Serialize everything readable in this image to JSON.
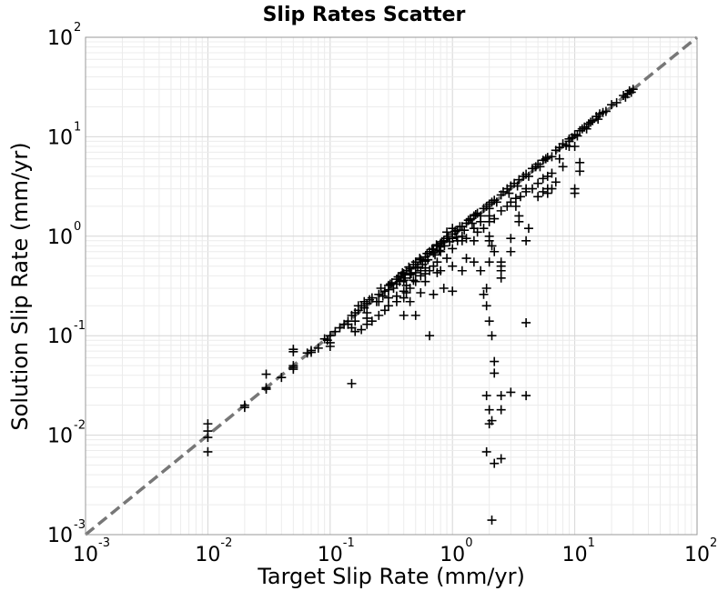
{
  "chart_data": {
    "type": "scatter",
    "title": "Slip Rates Scatter",
    "xlabel": "Target Slip Rate (mm/yr)",
    "ylabel": "Solution Slip Rate (mm/yr)",
    "xscale": "log",
    "yscale": "log",
    "xlim": [
      0.001,
      100
    ],
    "ylim": [
      0.001,
      100
    ],
    "grid": true,
    "marker": "plus",
    "marker_color": "#000000",
    "reference_line": {
      "from": [
        0.001,
        0.001
      ],
      "to": [
        100,
        100
      ],
      "style": "dashed",
      "color": "#777777"
    },
    "x_ticks": [
      {
        "base": "10",
        "exp": "-3"
      },
      {
        "base": "10",
        "exp": "-2"
      },
      {
        "base": "10",
        "exp": "-1"
      },
      {
        "base": "10",
        "exp": "0"
      },
      {
        "base": "10",
        "exp": "1"
      },
      {
        "base": "10",
        "exp": "2"
      }
    ],
    "y_ticks": [
      {
        "base": "10",
        "exp": "-3"
      },
      {
        "base": "10",
        "exp": "-2"
      },
      {
        "base": "10",
        "exp": "-1"
      },
      {
        "base": "10",
        "exp": "0"
      },
      {
        "base": "10",
        "exp": "1"
      },
      {
        "base": "10",
        "exp": "2"
      }
    ],
    "points": [
      [
        0.01,
        0.013
      ],
      [
        0.01,
        0.011
      ],
      [
        0.01,
        0.0095
      ],
      [
        0.01,
        0.0068
      ],
      [
        0.02,
        0.02
      ],
      [
        0.02,
        0.019
      ],
      [
        0.03,
        0.041
      ],
      [
        0.03,
        0.03
      ],
      [
        0.03,
        0.029
      ],
      [
        0.04,
        0.038
      ],
      [
        0.05,
        0.073
      ],
      [
        0.05,
        0.069
      ],
      [
        0.05,
        0.05
      ],
      [
        0.05,
        0.048
      ],
      [
        0.05,
        0.046
      ],
      [
        0.065,
        0.067
      ],
      [
        0.07,
        0.071
      ],
      [
        0.08,
        0.075
      ],
      [
        0.09,
        0.093
      ],
      [
        0.1,
        0.1
      ],
      [
        0.1,
        0.085
      ],
      [
        0.1,
        0.078
      ],
      [
        0.095,
        0.09
      ],
      [
        0.12,
        0.12
      ],
      [
        0.13,
        0.13
      ],
      [
        0.14,
        0.14
      ],
      [
        0.15,
        0.16
      ],
      [
        0.15,
        0.12
      ],
      [
        0.16,
        0.17
      ],
      [
        0.17,
        0.18
      ],
      [
        0.18,
        0.2
      ],
      [
        0.19,
        0.19
      ],
      [
        0.2,
        0.21
      ],
      [
        0.2,
        0.17
      ],
      [
        0.2,
        0.15
      ],
      [
        0.22,
        0.24
      ],
      [
        0.25,
        0.26
      ],
      [
        0.25,
        0.22
      ],
      [
        0.28,
        0.28
      ],
      [
        0.3,
        0.32
      ],
      [
        0.3,
        0.29
      ],
      [
        0.32,
        0.34
      ],
      [
        0.35,
        0.33
      ],
      [
        0.35,
        0.37
      ],
      [
        0.38,
        0.4
      ],
      [
        0.4,
        0.42
      ],
      [
        0.4,
        0.36
      ],
      [
        0.42,
        0.45
      ],
      [
        0.45,
        0.47
      ],
      [
        0.45,
        0.41
      ],
      [
        0.5,
        0.55
      ],
      [
        0.5,
        0.48
      ],
      [
        0.5,
        0.43
      ],
      [
        0.55,
        0.58
      ],
      [
        0.6,
        0.62
      ],
      [
        0.6,
        0.56
      ],
      [
        0.65,
        0.7
      ],
      [
        0.7,
        0.68
      ],
      [
        0.7,
        0.74
      ],
      [
        0.75,
        0.8
      ],
      [
        0.8,
        0.85
      ],
      [
        0.8,
        0.78
      ],
      [
        0.85,
        0.9
      ],
      [
        0.9,
        0.95
      ],
      [
        0.9,
        1.1
      ],
      [
        1.0,
        1.05
      ],
      [
        1.0,
        1.2
      ],
      [
        1.0,
        0.95
      ],
      [
        1.1,
        1.15
      ],
      [
        1.2,
        1.25
      ],
      [
        1.3,
        1.35
      ],
      [
        1.4,
        1.5
      ],
      [
        1.5,
        1.6
      ],
      [
        1.6,
        1.7
      ],
      [
        1.8,
        1.9
      ],
      [
        2.0,
        2.1
      ],
      [
        2.0,
        1.9
      ],
      [
        2.2,
        2.3
      ],
      [
        2.5,
        2.6
      ],
      [
        2.8,
        3.0
      ],
      [
        3.0,
        3.2
      ],
      [
        3.5,
        3.7
      ],
      [
        4.0,
        4.2
      ],
      [
        4.5,
        4.8
      ],
      [
        5.0,
        5.3
      ],
      [
        5.5,
        5.8
      ],
      [
        6.0,
        6.2
      ],
      [
        7.0,
        7.3
      ],
      [
        8.0,
        8.5
      ],
      [
        9.0,
        9.5
      ],
      [
        10.0,
        10.5
      ],
      [
        11.0,
        11.5
      ],
      [
        12.0,
        12.5
      ],
      [
        13.0,
        13.5
      ],
      [
        14.0,
        14.5
      ],
      [
        15.0,
        16.0
      ],
      [
        17.0,
        17.5
      ],
      [
        20.0,
        21.0
      ],
      [
        25.0,
        26.0
      ],
      [
        26.0,
        25.0
      ],
      [
        28.0,
        29.0
      ],
      [
        30.0,
        30.0
      ],
      [
        0.07,
        0.068
      ],
      [
        0.11,
        0.11
      ],
      [
        0.14,
        0.13
      ],
      [
        0.16,
        0.14
      ],
      [
        0.17,
        0.2
      ],
      [
        0.19,
        0.22
      ],
      [
        0.21,
        0.23
      ],
      [
        0.24,
        0.22
      ],
      [
        0.26,
        0.3
      ],
      [
        0.27,
        0.25
      ],
      [
        0.31,
        0.33
      ],
      [
        0.33,
        0.3
      ],
      [
        0.36,
        0.39
      ],
      [
        0.37,
        0.35
      ],
      [
        0.39,
        0.43
      ],
      [
        0.41,
        0.38
      ],
      [
        0.44,
        0.49
      ],
      [
        0.46,
        0.42
      ],
      [
        0.48,
        0.52
      ],
      [
        0.52,
        0.49
      ],
      [
        0.54,
        0.6
      ],
      [
        0.57,
        0.52
      ],
      [
        0.62,
        0.67
      ],
      [
        0.63,
        0.58
      ],
      [
        0.68,
        0.74
      ],
      [
        0.72,
        0.65
      ],
      [
        0.74,
        0.82
      ],
      [
        0.78,
        0.72
      ],
      [
        0.82,
        0.88
      ],
      [
        0.86,
        0.8
      ],
      [
        0.92,
        1.0
      ],
      [
        0.95,
        0.88
      ],
      [
        1.05,
        1.12
      ],
      [
        1.08,
        0.98
      ],
      [
        1.15,
        1.25
      ],
      [
        1.25,
        1.15
      ],
      [
        1.35,
        1.45
      ],
      [
        1.45,
        1.35
      ],
      [
        1.55,
        1.65
      ],
      [
        1.7,
        1.6
      ],
      [
        1.9,
        2.0
      ],
      [
        2.1,
        2.2
      ],
      [
        2.3,
        2.2
      ],
      [
        2.6,
        2.8
      ],
      [
        2.9,
        2.7
      ],
      [
        3.2,
        3.4
      ],
      [
        3.4,
        3.2
      ],
      [
        3.8,
        4.0
      ],
      [
        4.2,
        4.0
      ],
      [
        4.8,
        5.0
      ],
      [
        5.2,
        5.0
      ],
      [
        5.8,
        6.0
      ],
      [
        6.5,
        6.3
      ],
      [
        7.5,
        7.8
      ],
      [
        8.5,
        8.2
      ],
      [
        9.5,
        9.8
      ],
      [
        10.5,
        10.2
      ],
      [
        11.5,
        12.0
      ],
      [
        12.5,
        12.0
      ],
      [
        13.5,
        14.0
      ],
      [
        15.5,
        15.0
      ],
      [
        16.0,
        17.0
      ],
      [
        18.0,
        18.0
      ],
      [
        22.0,
        22.0
      ],
      [
        27.0,
        27.0
      ],
      [
        29.0,
        28.0
      ],
      [
        0.8,
        0.7
      ],
      [
        0.75,
        0.55
      ],
      [
        0.7,
        0.5
      ],
      [
        0.6,
        0.48
      ],
      [
        0.6,
        0.42
      ],
      [
        0.55,
        0.4
      ],
      [
        0.5,
        0.35
      ],
      [
        0.45,
        0.3
      ],
      [
        0.42,
        0.27
      ],
      [
        0.4,
        0.24
      ],
      [
        0.35,
        0.22
      ],
      [
        0.3,
        0.2
      ],
      [
        0.28,
        0.18
      ],
      [
        0.25,
        0.16
      ],
      [
        0.22,
        0.14
      ],
      [
        0.2,
        0.13
      ],
      [
        0.18,
        0.115
      ],
      [
        0.16,
        0.11
      ],
      [
        0.9,
        0.6
      ],
      [
        1.0,
        0.75
      ],
      [
        1.1,
        0.9
      ],
      [
        1.2,
        1.0
      ],
      [
        1.3,
        0.95
      ],
      [
        1.5,
        1.2
      ],
      [
        1.7,
        1.4
      ],
      [
        2.0,
        1.6
      ],
      [
        2.0,
        1.4
      ],
      [
        2.2,
        1.5
      ],
      [
        2.5,
        1.8
      ],
      [
        2.8,
        2.0
      ],
      [
        3.0,
        2.2
      ],
      [
        3.3,
        2.4
      ],
      [
        3.6,
        2.5
      ],
      [
        4.0,
        2.8
      ],
      [
        4.5,
        3.0
      ],
      [
        5.0,
        3.4
      ],
      [
        5.5,
        3.8
      ],
      [
        6.0,
        4.0
      ],
      [
        6.5,
        4.3
      ],
      [
        2.0,
        1.0
      ],
      [
        2.0,
        0.9
      ],
      [
        2.1,
        0.8
      ],
      [
        2.2,
        0.7
      ],
      [
        2.5,
        0.55
      ],
      [
        2.5,
        0.45
      ],
      [
        2.5,
        0.38
      ],
      [
        3.0,
        0.95
      ],
      [
        3.0,
        0.7
      ],
      [
        3.5,
        1.6
      ],
      [
        4.0,
        0.9
      ],
      [
        1.2,
        0.9
      ],
      [
        1.3,
        0.6
      ],
      [
        1.5,
        0.9
      ],
      [
        1.6,
        1.1
      ],
      [
        1.8,
        1.2
      ],
      [
        1.0,
        0.5
      ],
      [
        0.8,
        0.45
      ],
      [
        0.65,
        0.45
      ],
      [
        1.5,
        0.55
      ],
      [
        3.3,
        2.0
      ],
      [
        3.5,
        1.4
      ],
      [
        4.2,
        1.2
      ],
      [
        6.0,
        2.7
      ],
      [
        6.5,
        3.0
      ],
      [
        7.0,
        3.5
      ],
      [
        8.0,
        5.0
      ],
      [
        11.0,
        5.5
      ],
      [
        11.0,
        4.5
      ],
      [
        10.0,
        3.0
      ],
      [
        10.0,
        2.7
      ],
      [
        7.5,
        6.0
      ],
      [
        9.0,
        8.0
      ],
      [
        4.0,
        3.0
      ],
      [
        5.0,
        2.5
      ],
      [
        5.5,
        2.8
      ],
      [
        6.0,
        3.0
      ],
      [
        9.0,
        9.0
      ],
      [
        10.0,
        8.0
      ],
      [
        0.3,
        0.24
      ],
      [
        0.35,
        0.25
      ],
      [
        0.4,
        0.28
      ],
      [
        0.42,
        0.32
      ],
      [
        0.48,
        0.36
      ],
      [
        0.55,
        0.45
      ],
      [
        0.45,
        0.22
      ],
      [
        0.4,
        0.16
      ],
      [
        0.5,
        0.16
      ],
      [
        0.65,
        0.1
      ],
      [
        0.7,
        0.26
      ],
      [
        0.75,
        0.43
      ],
      [
        0.6,
        0.35
      ],
      [
        0.55,
        0.27
      ],
      [
        0.85,
        0.3
      ],
      [
        1.0,
        0.28
      ],
      [
        1.2,
        0.45
      ],
      [
        1.9,
        0.3
      ],
      [
        1.7,
        0.45
      ],
      [
        2.0,
        0.55
      ],
      [
        2.5,
        0.5
      ],
      [
        1.8,
        0.26
      ],
      [
        1.9,
        0.2
      ],
      [
        2.0,
        0.14
      ],
      [
        2.1,
        0.1
      ],
      [
        4.0,
        0.135
      ],
      [
        0.15,
        0.033
      ],
      [
        2.2,
        0.055
      ],
      [
        2.2,
        0.042
      ],
      [
        1.9,
        0.025
      ],
      [
        2.5,
        0.025
      ],
      [
        3.0,
        0.027
      ],
      [
        4.0,
        0.025
      ],
      [
        2.0,
        0.018
      ],
      [
        2.5,
        0.018
      ],
      [
        2.1,
        0.014
      ],
      [
        2.0,
        0.013
      ],
      [
        1.9,
        0.0068
      ],
      [
        2.2,
        0.0052
      ],
      [
        2.5,
        0.0058
      ],
      [
        2.1,
        0.0014
      ]
    ]
  }
}
